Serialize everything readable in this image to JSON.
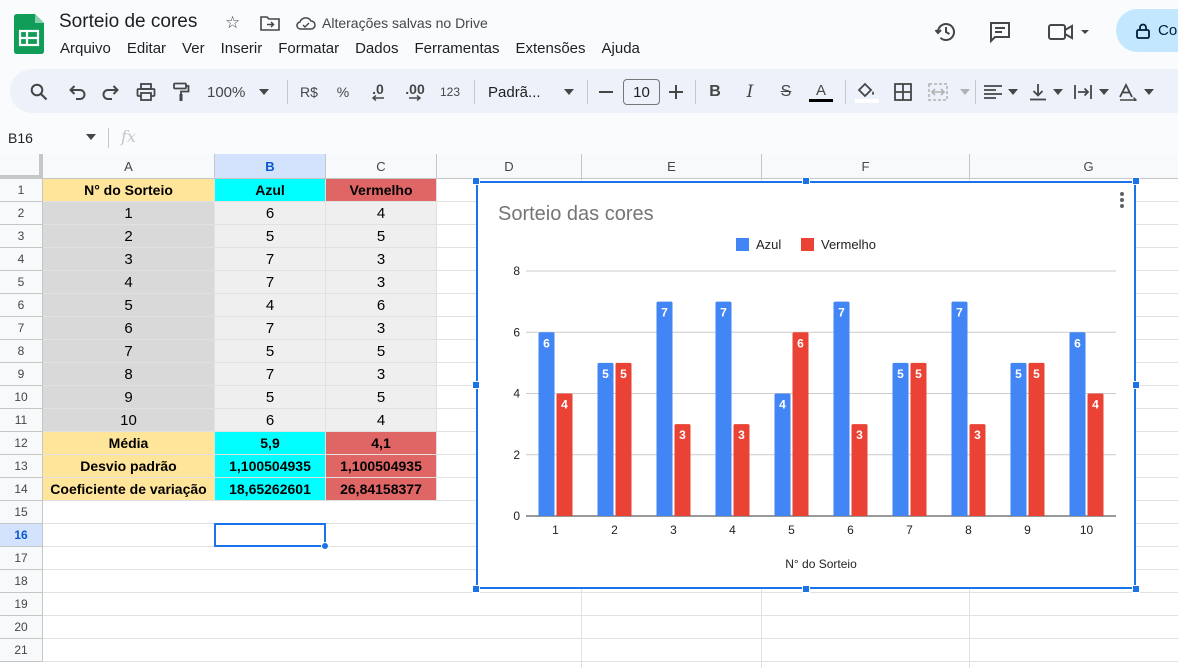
{
  "doc": {
    "title": "Sorteio de cores",
    "saved_status": "Alterações salvas no Drive",
    "share_label": "Co"
  },
  "menu": [
    "Arquivo",
    "Editar",
    "Ver",
    "Inserir",
    "Formatar",
    "Dados",
    "Ferramentas",
    "Extensões",
    "Ajuda"
  ],
  "toolbar": {
    "zoom": "100%",
    "currency": "R$",
    "percent": "%",
    "dec_decrease": ".0",
    "dec_increase": ".00",
    "number_format": "123",
    "font": "Padrã...",
    "font_size": "10"
  },
  "formula_bar": {
    "cell_ref": "B16",
    "fx": "fx"
  },
  "grid": {
    "columns": [
      "A",
      "B",
      "C",
      "D",
      "E",
      "F",
      "G"
    ],
    "rows": [
      "1",
      "2",
      "3",
      "4",
      "5",
      "6",
      "7",
      "8",
      "9",
      "10",
      "11",
      "12",
      "13",
      "14",
      "15",
      "16",
      "17",
      "18",
      "19",
      "20",
      "21"
    ],
    "selected_cell": "B16",
    "header_row": [
      "N° do Sorteio",
      "Azul",
      "Vermelho"
    ],
    "data_rows": [
      [
        "1",
        "6",
        "4"
      ],
      [
        "2",
        "5",
        "5"
      ],
      [
        "3",
        "7",
        "3"
      ],
      [
        "4",
        "7",
        "3"
      ],
      [
        "5",
        "4",
        "6"
      ],
      [
        "6",
        "7",
        "3"
      ],
      [
        "7",
        "5",
        "5"
      ],
      [
        "8",
        "7",
        "3"
      ],
      [
        "9",
        "5",
        "5"
      ],
      [
        "10",
        "6",
        "4"
      ]
    ],
    "stats_rows": [
      [
        "Média",
        "5,9",
        "4,1"
      ],
      [
        "Desvio padrão",
        "1,100504935",
        "1,100504935"
      ],
      [
        "Coeficiente de variação",
        "18,65262601",
        "26,84158377"
      ]
    ]
  },
  "colors": {
    "header_a": "#ffe599",
    "col_b": "#00ffff",
    "col_c": "#e06666",
    "data_a": "#d9d9d9",
    "data_bc": "#efefef",
    "azul": "#4285f4",
    "vermelho": "#ea4335"
  },
  "chart_data": {
    "type": "bar",
    "title": "Sorteio das cores",
    "xlabel": "N° do Sorteio",
    "ylabel": "",
    "categories": [
      "1",
      "2",
      "3",
      "4",
      "5",
      "6",
      "7",
      "8",
      "9",
      "10"
    ],
    "series": [
      {
        "name": "Azul",
        "values": [
          6,
          5,
          7,
          7,
          4,
          7,
          5,
          7,
          5,
          6
        ]
      },
      {
        "name": "Vermelho",
        "values": [
          4,
          5,
          3,
          3,
          6,
          3,
          5,
          3,
          5,
          4
        ]
      }
    ],
    "ylim": [
      0,
      8
    ],
    "yticks": [
      "0",
      "2",
      "4",
      "6",
      "8"
    ],
    "grid": true,
    "legend": "top",
    "data_labels": true
  }
}
